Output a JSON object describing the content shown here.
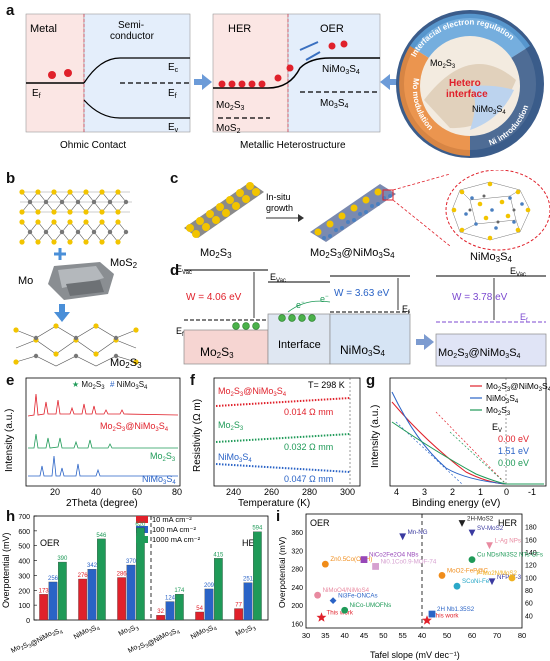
{
  "panel_labels": {
    "a": "a",
    "b": "b",
    "c": "c",
    "d": "d",
    "e": "e",
    "f": "f",
    "g": "g",
    "h": "h",
    "i": "i"
  },
  "panel_a": {
    "metal": "Metal",
    "semi_1": "Semi-",
    "semi_2": "conductor",
    "ec": "E",
    "ec_sub": "c",
    "ef": "E",
    "ef_sub": "f",
    "ev": "E",
    "ev_sub": "v",
    "caption_left": "Ohmic Contact",
    "hea": "HER",
    "oer": "OER",
    "mo2s3": "Mo",
    "mos2": "MoS",
    "nimo3s4": "NiMo",
    "mo3s4": "Mo",
    "caption_mid": "Metallic Heterostructure",
    "ring_top": "Interfacial electron regulation",
    "ring_left": "Mo modulation",
    "ring_right": "Ni introduction",
    "hetero_1": "Hetero",
    "hetero_2": "interface",
    "circle_mo2s3": "Mo",
    "circle_nimo3s4": "NiMo"
  },
  "panel_b": {
    "mos2": "MoS",
    "mo": "Mo",
    "mo2s3": "Mo"
  },
  "panel_c": {
    "mo2s3": "Mo",
    "arrow": "In-situ",
    "arrow2": "growth",
    "hetero": "Mo",
    "nimo3s4": "NiMo"
  },
  "panel_d": {
    "evac": "E",
    "evac_sub": "Vac",
    "w1": "W = 4.06 eV",
    "w2": "W = 3.63 eV",
    "w3": "W = 3.78 eV",
    "box1": "Mo",
    "box2": "Interface",
    "box3": "NiMo",
    "box4": "Mo",
    "ef": "E",
    "ef_sub": "f",
    "e": "e"
  },
  "chart_e": {
    "ylabel": "Intensity (a.u.)",
    "xlabel": "2Theta (degree)",
    "legend1": "Mo",
    "legend2": "NiMo",
    "s1": "Mo",
    "s2": "Mo",
    "s3": "NiMo",
    "xticks": [
      "20",
      "40",
      "60",
      "80"
    ]
  },
  "chart_f": {
    "ylabel": "Resistivity (Ω m)",
    "xlabel": "Temperature (K)",
    "temp": "T= 298 K",
    "s1": "Mo",
    "v1": "0.014 Ω mm",
    "s2": "Mo",
    "v2": "0.032 Ω mm",
    "s3": "NiMo",
    "v3": "0.047 Ω mm",
    "xticks": [
      "240",
      "260",
      "280",
      "300"
    ]
  },
  "chart_g": {
    "ylabel": "Intensity (a.u.)",
    "xlabel": "Binding energy (eV)",
    "l1": "Mo",
    "l2": "NiMo",
    "l3": "Mo",
    "ev": "E",
    "ev_sub": "V",
    "v1": "0.00 eV",
    "v2": "1.51 eV",
    "v3": "0.00 eV",
    "xticks": [
      "4",
      "3",
      "2",
      "1",
      "0",
      "-1"
    ]
  },
  "chart_data": [
    {
      "type": "bar",
      "panel": "h",
      "ylabel": "Overpotential (mV)",
      "ylim": [
        0,
        700
      ],
      "yticks": [
        "0",
        "100",
        "200",
        "300",
        "400",
        "500",
        "600",
        "700"
      ],
      "groups": [
        "OER",
        "HER"
      ],
      "categories": [
        "Mo2S3@NiMo3S4",
        "NiMo3S4",
        "Mo2S3",
        "Mo2S3@NiMo3S4",
        "NiMo3S4",
        "Mo2S3"
      ],
      "series": [
        {
          "name": "10 mA cm⁻²",
          "color": "#e0212b",
          "values": [
            173,
            276,
            286,
            32,
            54,
            77
          ]
        },
        {
          "name": "100 mA cm⁻²",
          "color": "#2a63c6",
          "values": [
            256,
            342,
            370,
            124,
            209,
            251
          ]
        },
        {
          "name": "1000 mA cm⁻²",
          "color": "#1f9a58",
          "values": [
            390,
            546,
            620,
            174,
            415,
            594
          ]
        }
      ],
      "legend_placement": "top-center"
    },
    {
      "type": "scatter",
      "panel": "i",
      "xlabel": "Tafel slope (mV dec⁻¹)",
      "ylabel": "Overpotential (mV)",
      "left_title": "OER",
      "right_title": "HER",
      "left_x": [
        30,
        60
      ],
      "left_y": [
        150,
        400
      ],
      "right_x": [
        40,
        80
      ],
      "right_y": [
        20,
        200
      ],
      "left_xticks": [
        "30",
        "35",
        "40",
        "45",
        "50",
        "55"
      ],
      "right_xticks": [
        "40",
        "50",
        "60",
        "70",
        "80"
      ],
      "left_yticks": [
        "160",
        "200",
        "240",
        "280",
        "320",
        "360"
      ],
      "right_yticks": [
        "40",
        "60",
        "80",
        "100",
        "120",
        "140",
        "160",
        "180"
      ],
      "oer_points": [
        {
          "label": "This work",
          "x": 34,
          "y": 173,
          "color": "#e0212b",
          "shape": "star"
        },
        {
          "label": "NiCo-UMOFNs",
          "x": 40,
          "y": 189,
          "color": "#1f9a58",
          "shape": "circle"
        },
        {
          "label": "Ni3Fe-ONCAs",
          "x": 37,
          "y": 210,
          "color": "#2a63c6",
          "shape": "diamond"
        },
        {
          "label": "NiMoO4/NiMoS4",
          "x": 33,
          "y": 222,
          "color": "#e88aa0",
          "shape": "circle"
        },
        {
          "label": "Zn0.5Co(OOH)",
          "x": 35,
          "y": 290,
          "color": "#f08c1a",
          "shape": "circle"
        },
        {
          "label": "NiCo2Fe2O4 NBs",
          "x": 45,
          "y": 300,
          "color": "#9747b8",
          "shape": "square"
        },
        {
          "label": "Ni0.1Co0.9-MOF-74",
          "x": 48,
          "y": 285,
          "color": "#d6a0d0",
          "shape": "square"
        },
        {
          "label": "Mn-NG",
          "x": 55,
          "y": 350,
          "color": "#3a3aa0",
          "shape": "triangle"
        }
      ],
      "her_points": [
        {
          "label": "This work",
          "x": 42,
          "y": 32,
          "color": "#e0212b",
          "shape": "star"
        },
        {
          "label": "2H Nb1.35S2",
          "x": 44,
          "y": 42,
          "color": "#2a63c6",
          "shape": "square"
        },
        {
          "label": "MoO2-FeP@C",
          "x": 48,
          "y": 103,
          "color": "#f08c1a",
          "shape": "circle"
        },
        {
          "label": "SCoNi-Fe",
          "x": 54,
          "y": 86,
          "color": "#2aa8c8",
          "shape": "circle"
        },
        {
          "label": "Cu NDs/Ni3S2 NTs-CFs",
          "x": 60,
          "y": 128,
          "color": "#1f9a58",
          "shape": "circle"
        },
        {
          "label": "NFP/C-3",
          "x": 68,
          "y": 93,
          "color": "#3a3aa0",
          "shape": "triangle"
        },
        {
          "label": "L-Ag NPs",
          "x": 67,
          "y": 150,
          "color": "#e88aa0",
          "shape": "triangle"
        },
        {
          "label": "2H-MoS2",
          "x": 56,
          "y": 185,
          "color": "#222222",
          "shape": "triangle"
        },
        {
          "label": "SV-MoS2",
          "x": 60,
          "y": 170,
          "color": "#3a3aa0",
          "shape": "triangle"
        },
        {
          "label": "P-Mo2N/MoS2",
          "x": 76,
          "y": 99,
          "color": "#f0b020",
          "shape": "circle"
        }
      ]
    }
  ]
}
